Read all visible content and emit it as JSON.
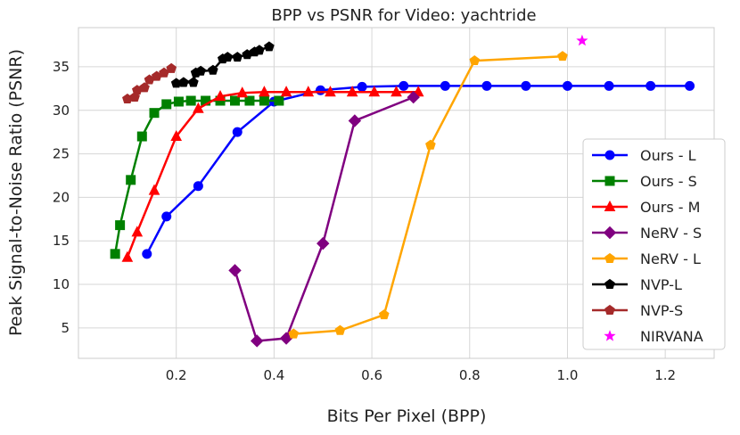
{
  "chart_data": {
    "type": "line",
    "title": "BPP vs PSNR for Video: yachtride",
    "xlabel": "Bits Per Pixel (BPP)",
    "ylabel": "Peak Signal-to-Noise Ratio (PSNR)",
    "xlim": [
      0.0,
      1.3
    ],
    "ylim": [
      1.5,
      39.5
    ],
    "xticks": [
      "0.2",
      "0.4",
      "0.6",
      "0.8",
      "1.0",
      "1.2"
    ],
    "yticks": [
      "5",
      "10",
      "15",
      "20",
      "25",
      "30",
      "35"
    ],
    "xtick_values": [
      0.2,
      0.4,
      0.6,
      0.8,
      1.0,
      1.2
    ],
    "ytick_values": [
      5,
      10,
      15,
      20,
      25,
      30,
      35
    ],
    "grid": true,
    "legend_position": "right",
    "series": [
      {
        "name": "Ours - L",
        "color": "#0000ff",
        "marker": "circle",
        "line": true,
        "x": [
          0.14,
          0.18,
          0.245,
          0.325,
          0.4,
          0.495,
          0.58,
          0.665,
          0.75,
          0.835,
          0.915,
          1.0,
          1.085,
          1.17,
          1.25
        ],
        "y": [
          13.5,
          17.8,
          21.3,
          27.5,
          31.0,
          32.3,
          32.7,
          32.8,
          32.8,
          32.8,
          32.8,
          32.8,
          32.8,
          32.8,
          32.8
        ]
      },
      {
        "name": "Ours - S",
        "color": "#008000",
        "marker": "square",
        "line": true,
        "x": [
          0.075,
          0.085,
          0.107,
          0.13,
          0.155,
          0.18,
          0.205,
          0.23,
          0.26,
          0.29,
          0.32,
          0.35,
          0.38,
          0.41
        ],
        "y": [
          13.5,
          16.8,
          22.0,
          27.0,
          29.7,
          30.7,
          31.0,
          31.1,
          31.1,
          31.1,
          31.1,
          31.1,
          31.1,
          31.1
        ]
      },
      {
        "name": "Ours - M",
        "color": "#ff0000",
        "marker": "triangle",
        "line": true,
        "x": [
          0.1,
          0.12,
          0.155,
          0.2,
          0.245,
          0.29,
          0.335,
          0.38,
          0.425,
          0.47,
          0.515,
          0.56,
          0.605,
          0.65,
          0.695
        ],
        "y": [
          13.1,
          16.0,
          20.8,
          27.0,
          30.2,
          31.6,
          32.0,
          32.1,
          32.1,
          32.1,
          32.1,
          32.1,
          32.1,
          32.1,
          32.1
        ]
      },
      {
        "name": "NeRV - S",
        "color": "#800080",
        "marker": "diamond",
        "line": true,
        "x": [
          0.32,
          0.365,
          0.425,
          0.5,
          0.565,
          0.685
        ],
        "y": [
          11.6,
          3.5,
          3.8,
          14.7,
          28.8,
          31.5
        ]
      },
      {
        "name": "NeRV - L",
        "color": "#ffa500",
        "marker": "pentagon",
        "line": true,
        "x": [
          0.44,
          0.535,
          0.625,
          0.72,
          0.81,
          0.99
        ],
        "y": [
          4.3,
          4.7,
          6.5,
          26.0,
          35.7,
          36.2
        ]
      },
      {
        "name": "NVP-L",
        "color": "#000000",
        "marker": "pentagon",
        "line": true,
        "x": [
          0.2,
          0.215,
          0.235,
          0.24,
          0.25,
          0.275,
          0.295,
          0.305,
          0.325,
          0.345,
          0.36,
          0.37,
          0.39
        ],
        "y": [
          33.1,
          33.2,
          33.2,
          34.3,
          34.5,
          34.6,
          35.9,
          36.1,
          36.1,
          36.4,
          36.7,
          36.9,
          37.3
        ]
      },
      {
        "name": "NVP-S",
        "color": "#a52a2a",
        "marker": "pentagon",
        "line": true,
        "x": [
          0.1,
          0.115,
          0.12,
          0.135,
          0.145,
          0.16,
          0.175,
          0.19
        ],
        "y": [
          31.3,
          31.5,
          32.3,
          32.6,
          33.5,
          33.9,
          34.3,
          34.8
        ]
      },
      {
        "name": "NIRVANA",
        "color": "#ff00ff",
        "marker": "star",
        "line": false,
        "x": [
          1.03
        ],
        "y": [
          38.0
        ]
      }
    ]
  }
}
